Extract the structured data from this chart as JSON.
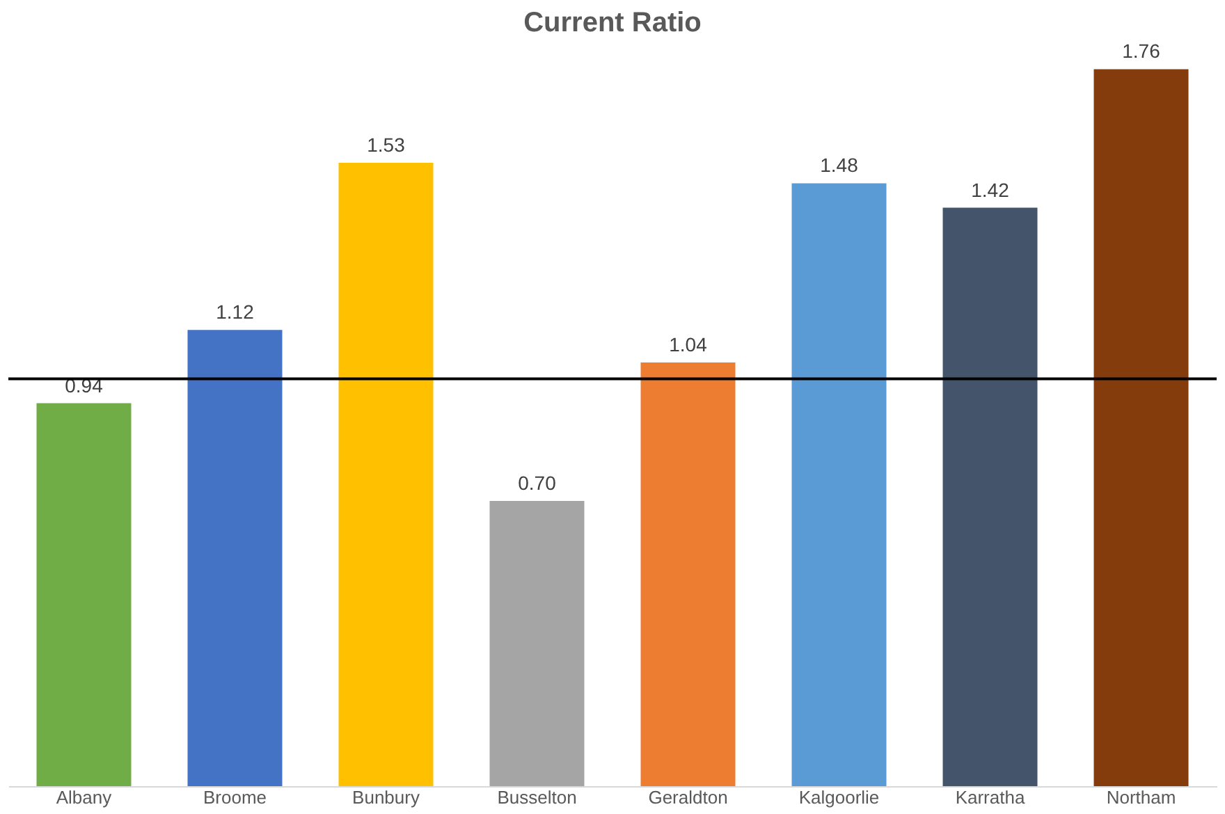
{
  "chart_data": {
    "type": "bar",
    "title": "Current Ratio",
    "categories": [
      "Albany",
      "Broome",
      "Bunbury",
      "Busselton",
      "Geraldton",
      "Kalgoorlie",
      "Karratha",
      "Northam"
    ],
    "values": [
      0.94,
      1.12,
      1.53,
      0.7,
      1.04,
      1.48,
      1.42,
      1.76
    ],
    "colors": [
      "#70ad47",
      "#4472c4",
      "#ffc000",
      "#a5a5a5",
      "#ed7d31",
      "#5b9bd5",
      "#44546a",
      "#843c0c"
    ],
    "value_labels": [
      "0.94",
      "1.12",
      "1.53",
      "0.70",
      "1.04",
      "1.48",
      "1.42",
      "1.76"
    ],
    "ref_lines": [
      {
        "axis": "y",
        "value": 1.0,
        "color": "#000000"
      }
    ],
    "grid": false
  }
}
